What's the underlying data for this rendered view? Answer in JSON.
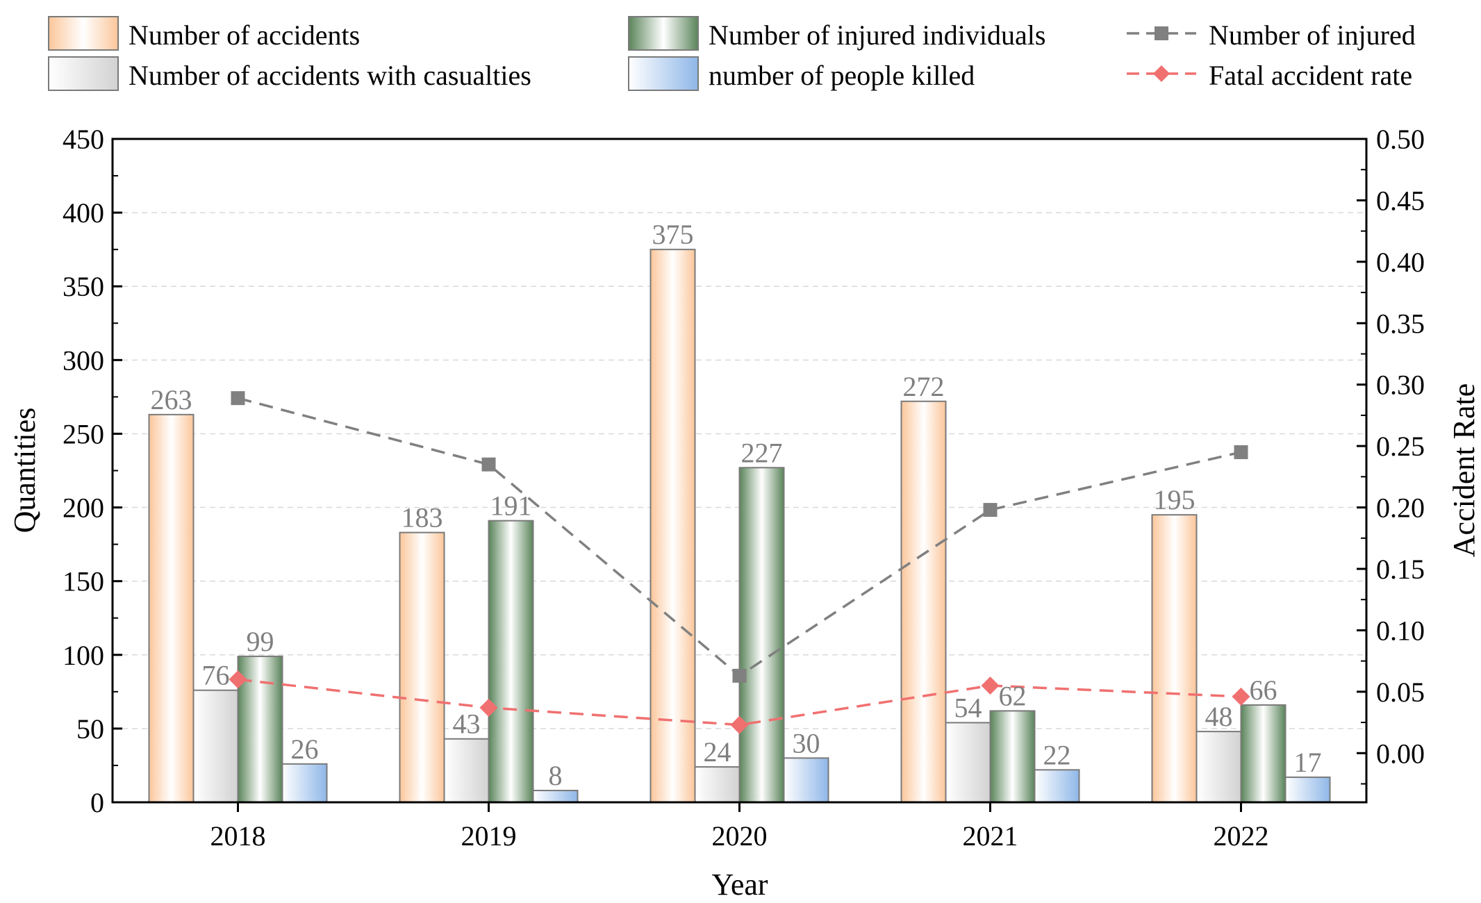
{
  "chart_data": {
    "type": "bar",
    "xlabel": "Year",
    "ylabel": "Quantities",
    "y2label": "Accident Rate",
    "ylim": [
      0,
      450
    ],
    "y2lim": [
      -0.04,
      0.5
    ],
    "yticks": [
      0,
      50,
      100,
      150,
      200,
      250,
      300,
      350,
      400,
      450
    ],
    "yticks_labels": [
      "0",
      "50",
      "100",
      "150",
      "200",
      "250",
      "300",
      "350",
      "400",
      "450"
    ],
    "y2ticks": [
      0.0,
      0.05,
      0.1,
      0.15,
      0.2,
      0.25,
      0.3,
      0.35,
      0.4,
      0.45,
      0.5
    ],
    "y2ticks_labels": [
      "0.00",
      "0.05",
      "0.10",
      "0.15",
      "0.20",
      "0.25",
      "0.30",
      "0.35",
      "0.40",
      "0.45",
      "0.50"
    ],
    "categories": [
      "2018",
      "2019",
      "2020",
      "2021",
      "2022"
    ],
    "grid": true,
    "legend_position": "top",
    "series": [
      {
        "name": "Number of accidents",
        "type": "bar",
        "axis": "left",
        "values": [
          263,
          183,
          375,
          272,
          195
        ],
        "labels": [
          "263",
          "183",
          "375",
          "272",
          "195"
        ],
        "color": "#fbc69a"
      },
      {
        "name": "Number of accidents with casualties",
        "type": "bar",
        "axis": "left",
        "values": [
          76,
          43,
          24,
          54,
          48
        ],
        "labels": [
          "76",
          "43",
          "24",
          "54",
          "48"
        ],
        "color": "#d4d4d4"
      },
      {
        "name": "Number of injured individuals",
        "type": "bar",
        "axis": "left",
        "values": [
          99,
          191,
          227,
          62,
          66
        ],
        "labels": [
          "99",
          "191",
          "227",
          "62",
          "66"
        ],
        "color": "#5f8a5f"
      },
      {
        "name": "number of people killed",
        "type": "bar",
        "axis": "left",
        "values": [
          26,
          8,
          30,
          22,
          17
        ],
        "labels": [
          "26",
          "8",
          "30",
          "22",
          "17"
        ],
        "color": "#9cc0ea"
      },
      {
        "name": "Number of injured",
        "type": "line",
        "axis": "right",
        "marker": "square",
        "values": [
          0.289,
          0.235,
          0.063,
          0.198,
          0.245
        ],
        "color": "#808080"
      },
      {
        "name": "Fatal accident rate",
        "type": "line",
        "axis": "right",
        "marker": "diamond",
        "values": [
          0.06,
          0.037,
          0.023,
          0.055,
          0.046
        ],
        "color": "#f07070"
      }
    ]
  }
}
